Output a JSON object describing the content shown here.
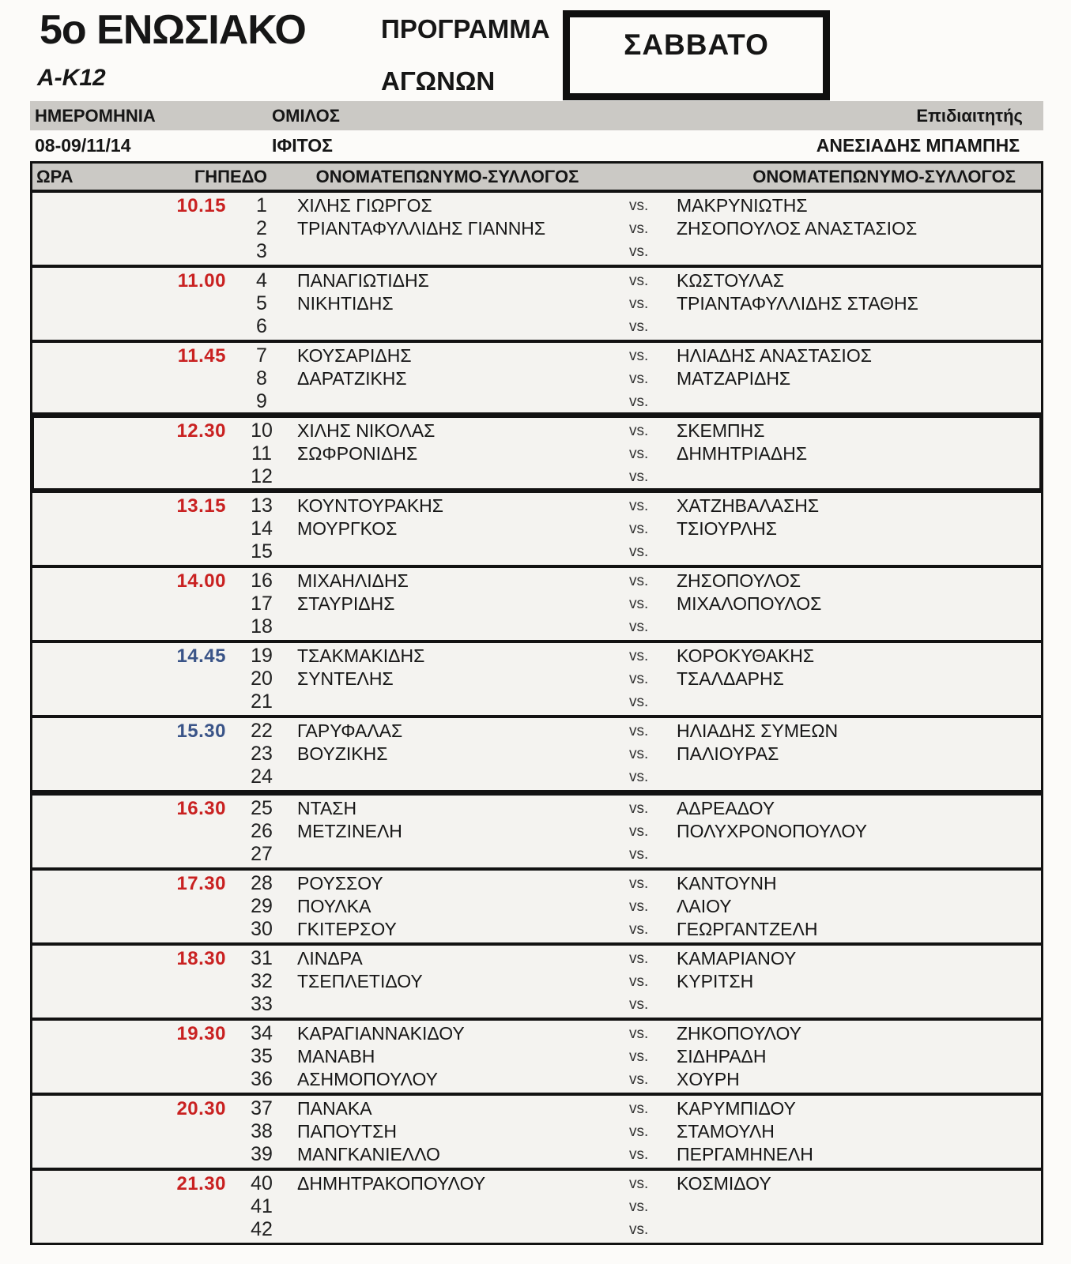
{
  "header": {
    "title": "5ο ΕΝΩΣΙΑΚΟ",
    "category": "A-K12",
    "program_line1": "ΠΡΟΓΡΑΜΜΑ",
    "program_line2": "ΑΓΩΝΩΝ",
    "day": "ΣΑΒΒΑΤΟ"
  },
  "info": {
    "date_label": "ΗΜΕΡΟΜΗΝΙΑ",
    "club_label": "ΟΜΙΛΟΣ",
    "referee_label": "Επιδιαιτητής",
    "date_value": "08-09/11/14",
    "club_value": "ΙΦΙΤΟΣ",
    "referee_value": "ΑΝΕΣΙΑΔΗΣ ΜΠΑΜΠΗΣ"
  },
  "table": {
    "headers": {
      "time": "ΩΡΑ",
      "court": "ΓΗΠΕΔΟ",
      "player1": "ΟΝΟΜΑΤΕΠΩΝΥΜΟ-ΣΥΛΛΟΓΟΣ",
      "player2": "ΟΝΟΜΑΤΕΠΩΝΥΜΟ-ΣΥΛΛΟΓΟΣ"
    },
    "vs_label": "vs.",
    "colors": {
      "time_red": "#c92121",
      "time_blue": "#3a5488"
    },
    "blocks": [
      {
        "time": "10.15",
        "time_color": "red",
        "highlight": false,
        "thick_top": false,
        "matches": [
          {
            "court": "1",
            "p1": "ΧΙΛΗΣ ΓΙΩΡΓΟΣ",
            "p2": "ΜΑΚΡΥΝΙΩΤΗΣ"
          },
          {
            "court": "2",
            "p1": "ΤΡΙΑΝΤΑΦΥΛΛΙΔΗΣ ΓΙΑΝΝΗΣ",
            "p2": "ΖΗΣΟΠΟΥΛΟΣ ΑΝΑΣΤΑΣΙΟΣ"
          },
          {
            "court": "3",
            "p1": "",
            "p2": ""
          }
        ]
      },
      {
        "time": "11.00",
        "time_color": "red",
        "highlight": false,
        "thick_top": false,
        "matches": [
          {
            "court": "4",
            "p1": "ΠΑΝΑΓΙΩΤΙΔΗΣ",
            "p2": "ΚΩΣΤΟΥΛΑΣ"
          },
          {
            "court": "5",
            "p1": "ΝΙΚΗΤΙΔΗΣ",
            "p2": "ΤΡΙΑΝΤΑΦΥΛΛΙΔΗΣ ΣΤΑΘΗΣ"
          },
          {
            "court": "6",
            "p1": "",
            "p2": ""
          }
        ]
      },
      {
        "time": "11.45",
        "time_color": "red",
        "highlight": false,
        "thick_top": false,
        "matches": [
          {
            "court": "7",
            "p1": "ΚΟΥΣΑΡΙΔΗΣ",
            "p2": "ΗΛΙΑΔΗΣ ΑΝΑΣΤΑΣΙΟΣ"
          },
          {
            "court": "8",
            "p1": "ΔΑΡΑΤΖΙΚΗΣ",
            "p2": "ΜΑΤΖΑΡΙΔΗΣ"
          },
          {
            "court": "9",
            "p1": "",
            "p2": ""
          }
        ]
      },
      {
        "time": "12.30",
        "time_color": "red",
        "highlight": true,
        "thick_top": false,
        "matches": [
          {
            "court": "10",
            "p1": "ΧΙΛΗΣ ΝΙΚΟΛΑΣ",
            "p2": "ΣΚΕΜΠΗΣ"
          },
          {
            "court": "11",
            "p1": "ΣΩΦΡΟΝΙΔΗΣ",
            "p2": "ΔΗΜΗΤΡΙΑΔΗΣ"
          },
          {
            "court": "12",
            "p1": "",
            "p2": ""
          }
        ]
      },
      {
        "time": "13.15",
        "time_color": "red",
        "highlight": false,
        "thick_top": false,
        "matches": [
          {
            "court": "13",
            "p1": "ΚΟΥΝΤΟΥΡΑΚΗΣ",
            "p2": "ΧΑΤΖΗΒΑΛΑΣΗΣ"
          },
          {
            "court": "14",
            "p1": "ΜΟΥΡΓΚΟΣ",
            "p2": "ΤΣΙΟΥΡΛΗΣ"
          },
          {
            "court": "15",
            "p1": "",
            "p2": ""
          }
        ]
      },
      {
        "time": "14.00",
        "time_color": "red",
        "highlight": false,
        "thick_top": false,
        "matches": [
          {
            "court": "16",
            "p1": "ΜΙΧΑΗΛΙΔΗΣ",
            "p2": "ΖΗΣΟΠΟΥΛΟΣ"
          },
          {
            "court": "17",
            "p1": "ΣΤΑΥΡΙΔΗΣ",
            "p2": "ΜΙΧΑΛΟΠΟΥΛΟΣ"
          },
          {
            "court": "18",
            "p1": "",
            "p2": ""
          }
        ]
      },
      {
        "time": "14.45",
        "time_color": "blue",
        "highlight": false,
        "thick_top": false,
        "matches": [
          {
            "court": "19",
            "p1": "ΤΣΑΚΜΑΚΙΔΗΣ",
            "p2": "ΚΟΡΟΚΥΘΑΚΗΣ"
          },
          {
            "court": "20",
            "p1": "ΣΥΝΤΕΛΗΣ",
            "p2": "ΤΣΑΛΔΑΡΗΣ"
          },
          {
            "court": "21",
            "p1": "",
            "p2": ""
          }
        ]
      },
      {
        "time": "15.30",
        "time_color": "blue",
        "highlight": false,
        "thick_top": false,
        "matches": [
          {
            "court": "22",
            "p1": "ΓΑΡΥΦΑΛΑΣ",
            "p2": "ΗΛΙΑΔΗΣ ΣΥΜΕΩΝ"
          },
          {
            "court": "23",
            "p1": "ΒΟΥΖΙΚΗΣ",
            "p2": "ΠΑΛΙΟΥΡΑΣ"
          },
          {
            "court": "24",
            "p1": "",
            "p2": ""
          }
        ]
      },
      {
        "time": "16.30",
        "time_color": "red",
        "highlight": false,
        "thick_top": true,
        "matches": [
          {
            "court": "25",
            "p1": "ΝΤΑΣΗ",
            "p2": "ΑΔΡΕΑΔΟΥ"
          },
          {
            "court": "26",
            "p1": "ΜΕΤΖΙΝΕΛΗ",
            "p2": "ΠΟΛΥΧΡΟΝΟΠΟΥΛΟΥ"
          },
          {
            "court": "27",
            "p1": "",
            "p2": ""
          }
        ]
      },
      {
        "time": "17.30",
        "time_color": "red",
        "highlight": false,
        "thick_top": false,
        "matches": [
          {
            "court": "28",
            "p1": "ΡΟΥΣΣΟΥ",
            "p2": "ΚΑΝΤΟΥΝΗ"
          },
          {
            "court": "29",
            "p1": "ΠΟΥΛΚΑ",
            "p2": "ΛΑΙΟΥ"
          },
          {
            "court": "30",
            "p1": "ΓΚΙΤΕΡΣΟΥ",
            "p2": "ΓΕΩΡΓΑΝΤΖΕΛΗ"
          }
        ]
      },
      {
        "time": "18.30",
        "time_color": "red",
        "highlight": false,
        "thick_top": false,
        "matches": [
          {
            "court": "31",
            "p1": "ΛΙΝΔΡΑ",
            "p2": "ΚΑΜΑΡΙΑΝΟΥ"
          },
          {
            "court": "32",
            "p1": "ΤΣΕΠΛΕΤΙΔΟΥ",
            "p2": "ΚΥΡΙΤΣΗ"
          },
          {
            "court": "33",
            "p1": "",
            "p2": ""
          }
        ]
      },
      {
        "time": "19.30",
        "time_color": "red",
        "highlight": false,
        "thick_top": false,
        "matches": [
          {
            "court": "34",
            "p1": "ΚΑΡΑΓΙΑΝΝΑΚΙΔΟΥ",
            "p2": "ΖΗΚΟΠΟΥΛΟΥ"
          },
          {
            "court": "35",
            "p1": "ΜΑΝΑΒΗ",
            "p2": "ΣΙΔΗΡΑΔΗ"
          },
          {
            "court": "36",
            "p1": "ΑΣΗΜΟΠΟΥΛΟΥ",
            "p2": "ΧΟΥΡΗ"
          }
        ]
      },
      {
        "time": "20.30",
        "time_color": "red",
        "highlight": false,
        "thick_top": false,
        "matches": [
          {
            "court": "37",
            "p1": "ΠΑΝΑΚΑ",
            "p2": "ΚΑΡΥΜΠΙΔΟΥ"
          },
          {
            "court": "38",
            "p1": "ΠΑΠΟΥΤΣΗ",
            "p2": "ΣΤΑΜΟΥΛΗ"
          },
          {
            "court": "39",
            "p1": "ΜΑΝΓΚΑΝΙΕΛΛΟ",
            "p2": "ΠΕΡΓΑΜΗΝΕΛΗ"
          }
        ]
      },
      {
        "time": "21.30",
        "time_color": "red",
        "highlight": false,
        "thick_top": false,
        "matches": [
          {
            "court": "40",
            "p1": "ΔΗΜΗΤΡΑΚΟΠΟΥΛΟΥ",
            "p2": "ΚΟΣΜΙΔΟΥ"
          },
          {
            "court": "41",
            "p1": "",
            "p2": ""
          },
          {
            "court": "42",
            "p1": "",
            "p2": ""
          }
        ]
      }
    ]
  }
}
